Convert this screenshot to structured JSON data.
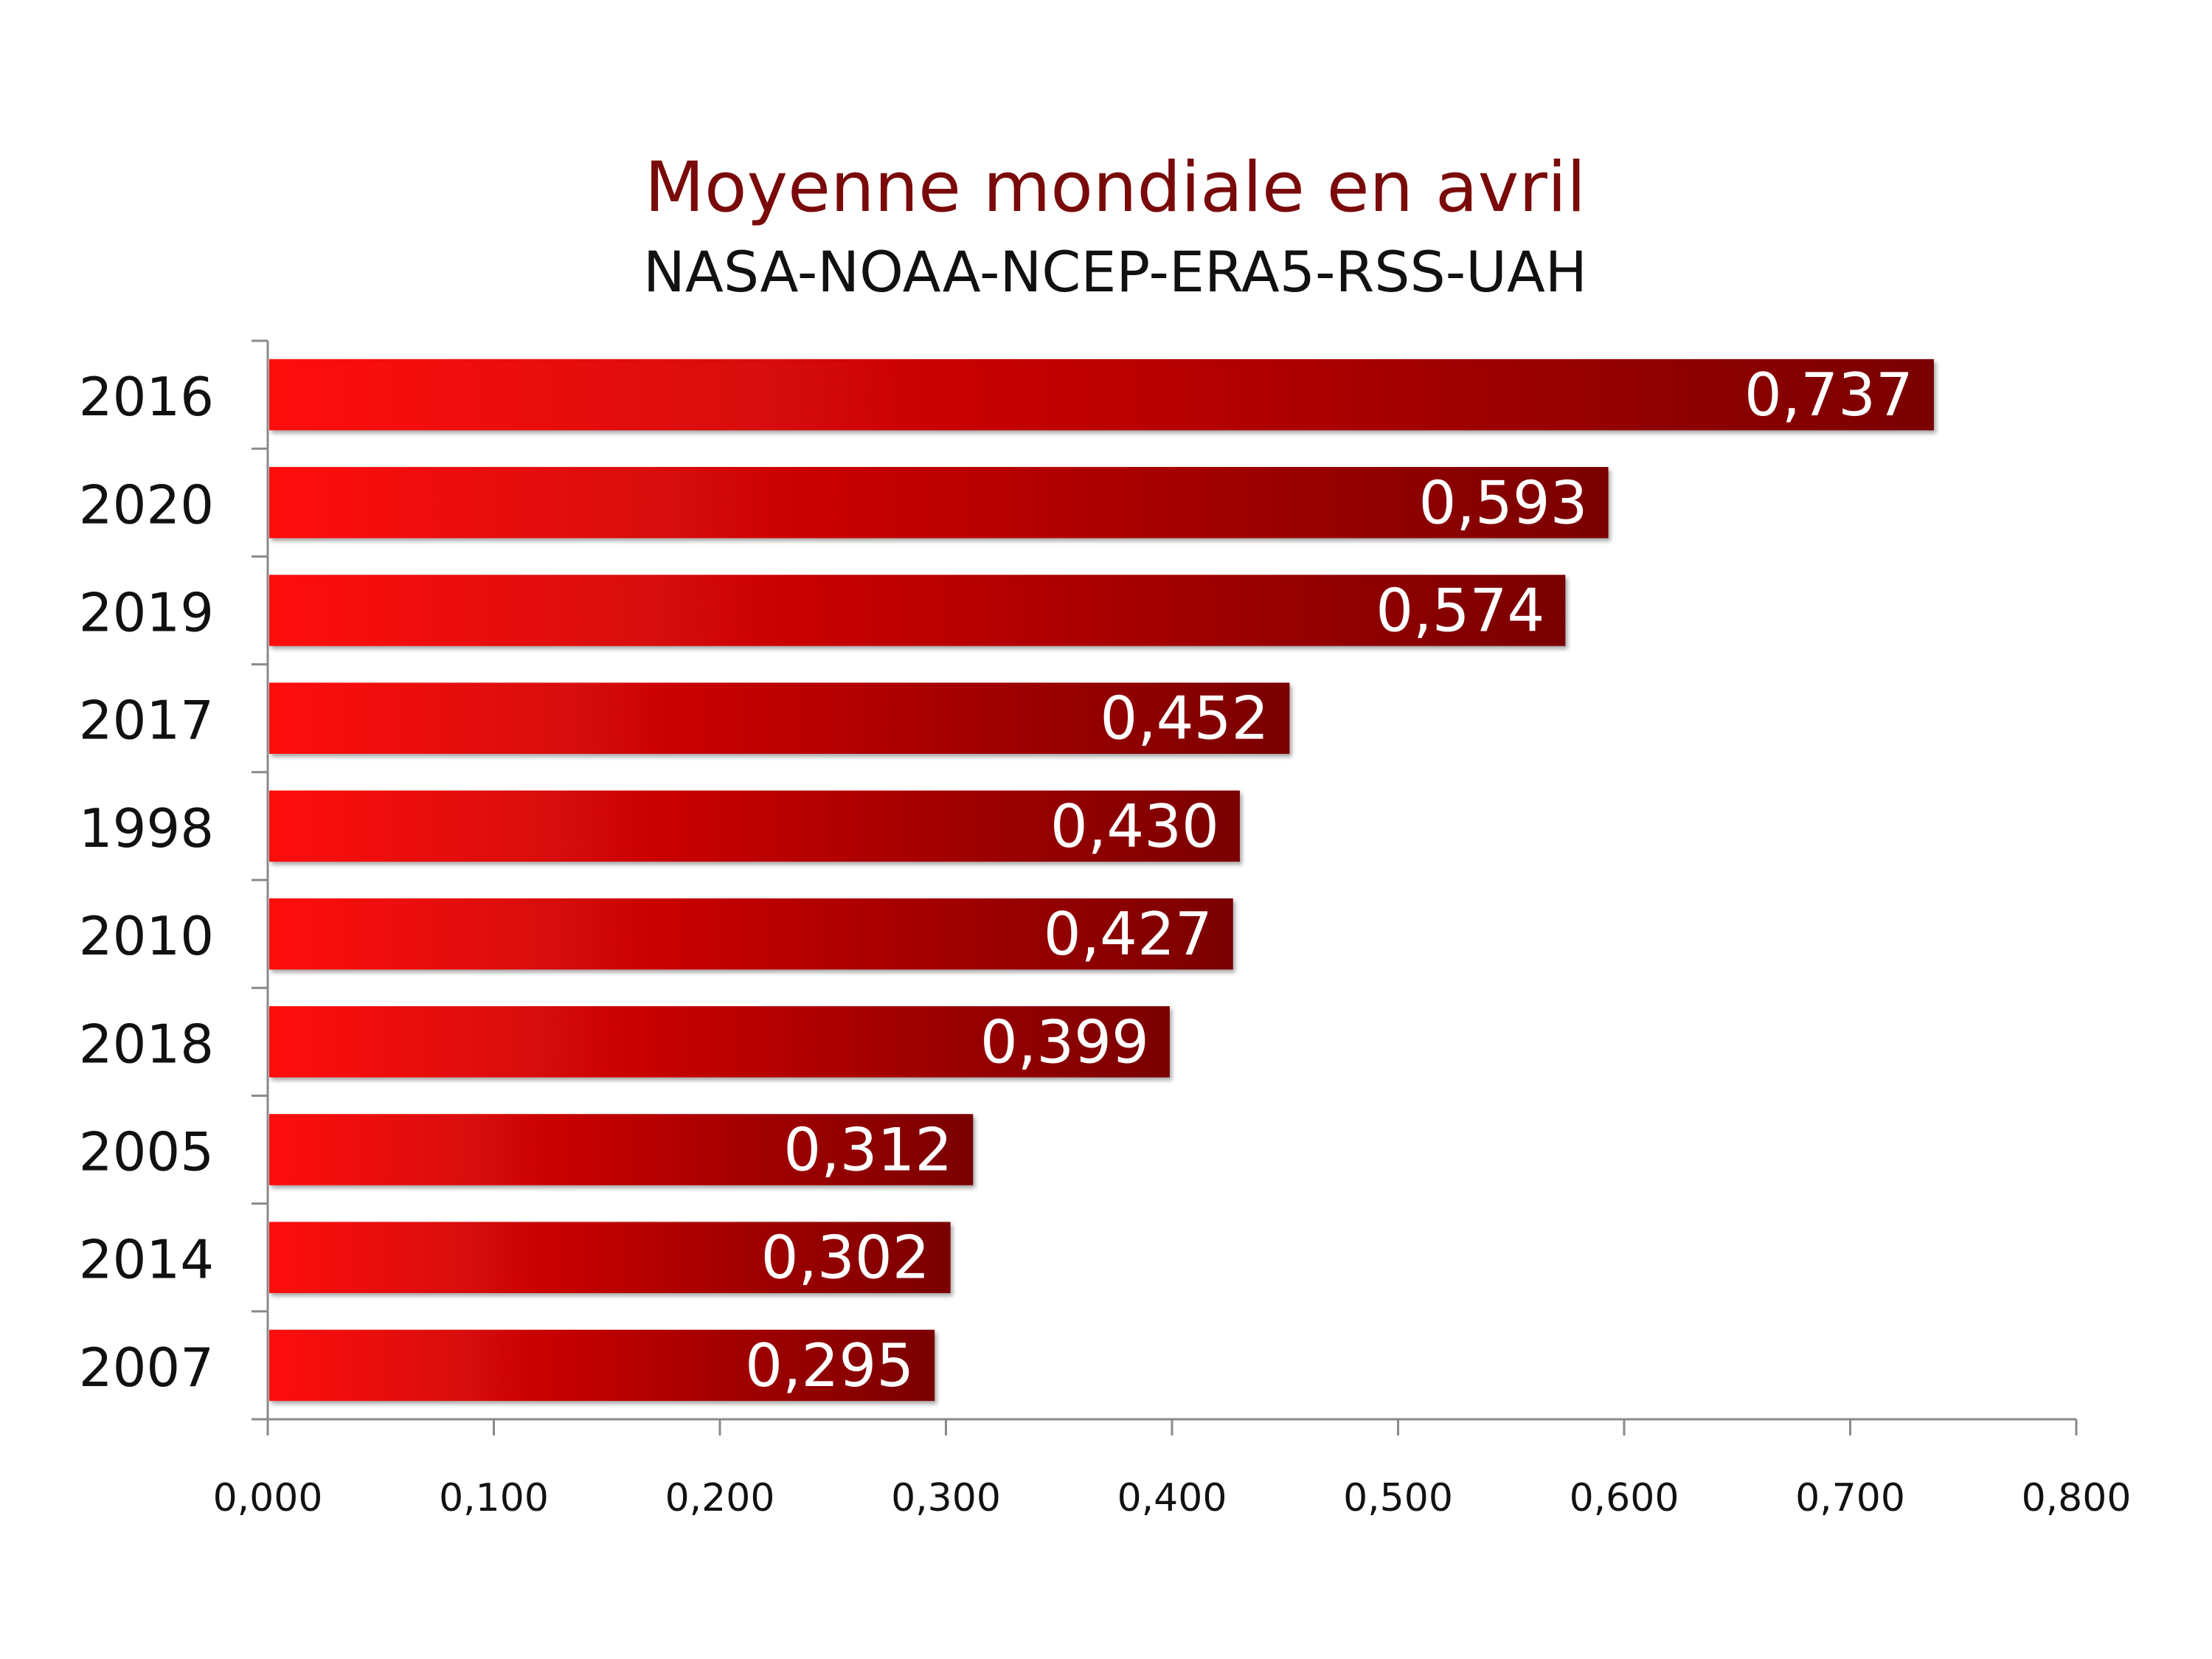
{
  "chart_data": {
    "type": "bar",
    "orientation": "horizontal",
    "title": "Moyenne mondiale en avril",
    "subtitle": "NASA-NOAA-NCEP-ERA5-RSS-UAH",
    "categories": [
      "2016",
      "2020",
      "2019",
      "2017",
      "1998",
      "2010",
      "2018",
      "2005",
      "2014",
      "2007"
    ],
    "values": [
      0.737,
      0.593,
      0.574,
      0.452,
      0.43,
      0.427,
      0.399,
      0.312,
      0.302,
      0.295
    ],
    "value_labels": [
      "0,737",
      "0,593",
      "0,574",
      "0,452",
      "0,430",
      "0,427",
      "0,399",
      "0,312",
      "0,302",
      "0,295"
    ],
    "xlim": [
      0,
      0.8
    ],
    "x_ticks": [
      0,
      0.1,
      0.2,
      0.3,
      0.4,
      0.5,
      0.6,
      0.7,
      0.8
    ],
    "x_tick_labels": [
      "0,000",
      "0,100",
      "0,200",
      "0,300",
      "0,400",
      "0,500",
      "0,600",
      "0,700",
      "0,800"
    ],
    "grid": false,
    "colors": {
      "bar_start": "#ff0a0a",
      "bar_end": "#7a0000",
      "title": "#7a0a0a",
      "subtitle": "#111111",
      "axis": "#8a8a8a",
      "value_label": "#ffffff"
    }
  }
}
